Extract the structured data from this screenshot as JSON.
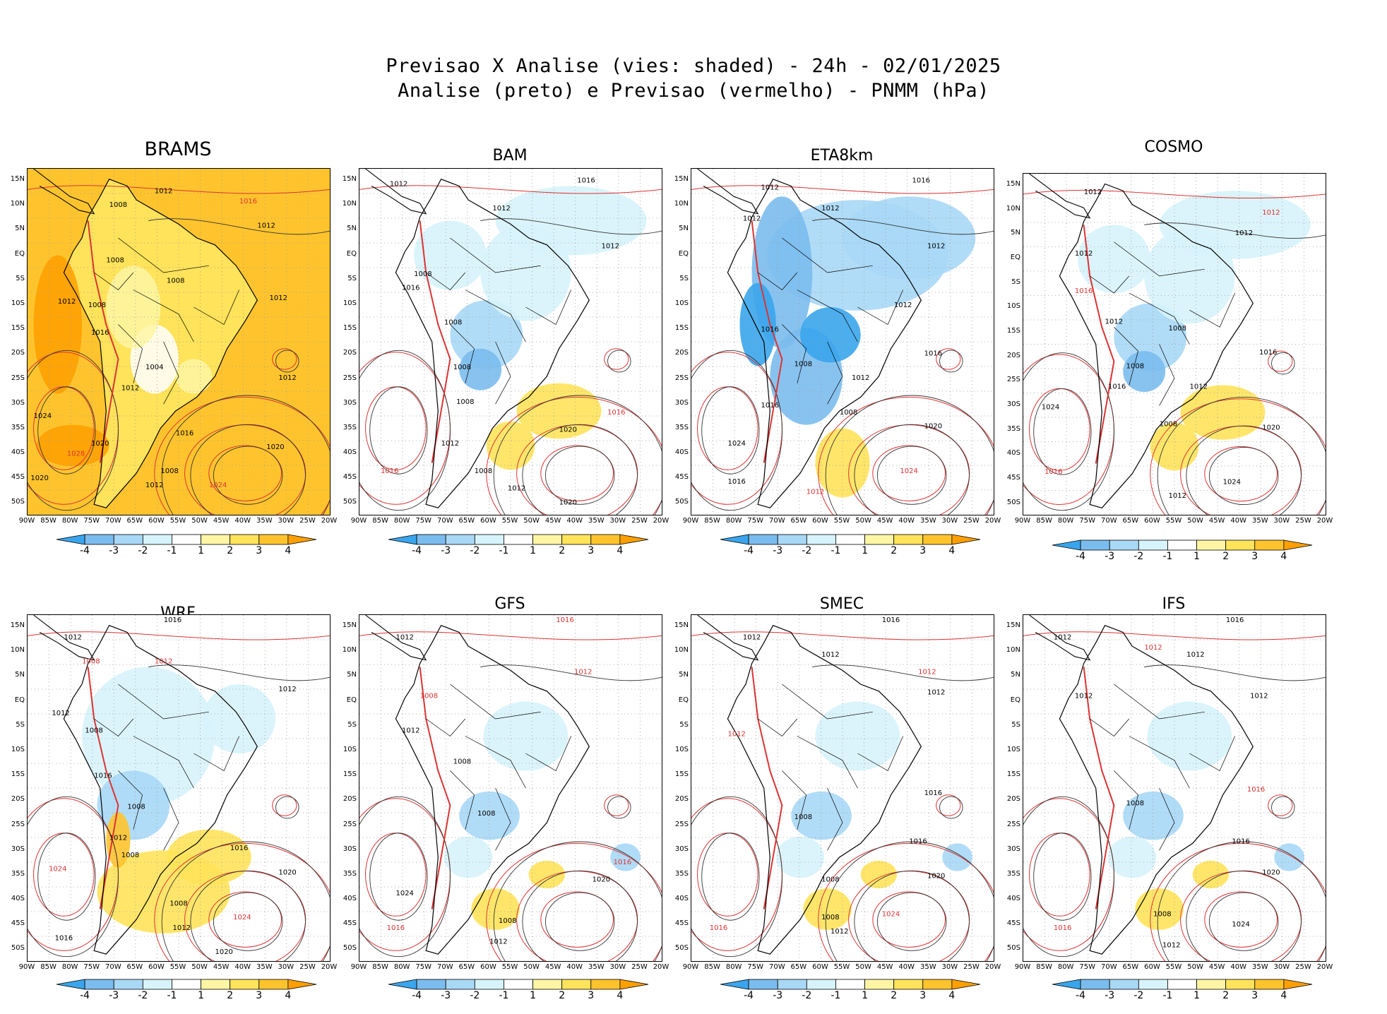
{
  "header": {
    "line1": "Previsao X Analise (vies: shaded) - 24h - 02/01/2025",
    "line2": "Analise (preto) e Previsao (vermelho) - PNMM (hPa)"
  },
  "axes": {
    "lat_labels": [
      "15N",
      "10N",
      "5N",
      "EQ",
      "5S",
      "10S",
      "15S",
      "20S",
      "25S",
      "30S",
      "35S",
      "40S",
      "45S",
      "50S"
    ],
    "lon_labels": [
      "90W",
      "85W",
      "80W",
      "75W",
      "70W",
      "65W",
      "60W",
      "55W",
      "50W",
      "45W",
      "40W",
      "35W",
      "30W",
      "25W",
      "20W"
    ]
  },
  "colorbar": {
    "ticks": [
      "-4",
      "-3",
      "-2",
      "-1",
      "1",
      "2",
      "3",
      "4"
    ],
    "colors": [
      "#3aa5ec",
      "#7bbcee",
      "#a9d8f6",
      "#d7f3fb",
      "#ffffff",
      "#fff6a5",
      "#ffe35a",
      "#ffc42d",
      "#ff9f00"
    ]
  },
  "panels": [
    {
      "name": "BRAMS",
      "mode": "orange",
      "labels": [
        [
          "1012",
          0.45,
          0.07,
          "k"
        ],
        [
          "1008",
          0.3,
          0.11,
          "k"
        ],
        [
          "1016",
          0.73,
          0.1,
          "r"
        ],
        [
          "1012",
          0.79,
          0.17,
          "k"
        ],
        [
          "1008",
          0.29,
          0.27,
          "k"
        ],
        [
          "1008",
          0.49,
          0.33,
          "k"
        ],
        [
          "1012",
          0.13,
          0.39,
          "k"
        ],
        [
          "1012",
          0.83,
          0.38,
          "k"
        ],
        [
          "1008",
          0.23,
          0.4,
          "k"
        ],
        [
          "1016",
          0.24,
          0.48,
          "k"
        ],
        [
          "1004",
          0.42,
          0.58,
          "k"
        ],
        [
          "1012",
          0.34,
          0.64,
          "k"
        ],
        [
          "1012",
          0.86,
          0.61,
          "k"
        ],
        [
          "1024",
          0.05,
          0.72,
          "k"
        ],
        [
          "1016",
          0.52,
          0.77,
          "k"
        ],
        [
          "1020",
          0.24,
          0.8,
          "k"
        ],
        [
          "1020",
          0.82,
          0.81,
          "k"
        ],
        [
          "1028",
          0.16,
          0.83,
          "r"
        ],
        [
          "1008",
          0.47,
          0.88,
          "k"
        ],
        [
          "1012",
          0.42,
          0.92,
          "k"
        ],
        [
          "1024",
          0.63,
          0.92,
          "r"
        ],
        [
          "1020",
          0.04,
          0.9,
          "k"
        ]
      ]
    },
    {
      "name": "BAM",
      "mode": "blue",
      "labels": [
        [
          "1012",
          0.13,
          0.05,
          "k"
        ],
        [
          "1016",
          0.75,
          0.04,
          "k"
        ],
        [
          "1012",
          0.47,
          0.12,
          "k"
        ],
        [
          "1012",
          0.83,
          0.23,
          "k"
        ],
        [
          "1008",
          0.21,
          0.31,
          "k"
        ],
        [
          "1016",
          0.17,
          0.35,
          "k"
        ],
        [
          "1008",
          0.31,
          0.45,
          "k"
        ],
        [
          "1008",
          0.34,
          0.58,
          "k"
        ],
        [
          "1008",
          0.35,
          0.68,
          "k"
        ],
        [
          "1020",
          0.69,
          0.76,
          "k"
        ],
        [
          "1016",
          0.85,
          0.71,
          "r"
        ],
        [
          "1012",
          0.3,
          0.8,
          "k"
        ],
        [
          "1008",
          0.41,
          0.88,
          "k"
        ],
        [
          "1012",
          0.52,
          0.93,
          "k"
        ],
        [
          "1020",
          0.69,
          0.97,
          "k"
        ],
        [
          "1016",
          0.1,
          0.88,
          "r"
        ]
      ]
    },
    {
      "name": "ETA8km",
      "mode": "blue-strong",
      "labels": [
        [
          "1012",
          0.26,
          0.06,
          "k"
        ],
        [
          "1016",
          0.76,
          0.04,
          "k"
        ],
        [
          "1012",
          0.46,
          0.12,
          "k"
        ],
        [
          "1012",
          0.2,
          0.15,
          "k"
        ],
        [
          "1012",
          0.81,
          0.23,
          "k"
        ],
        [
          "1012",
          0.7,
          0.4,
          "k"
        ],
        [
          "1016",
          0.26,
          0.47,
          "k"
        ],
        [
          "1008",
          0.37,
          0.57,
          "k"
        ],
        [
          "1012",
          0.56,
          0.61,
          "k"
        ],
        [
          "1016",
          0.8,
          0.54,
          "k"
        ],
        [
          "1016",
          0.26,
          0.69,
          "k"
        ],
        [
          "1008",
          0.52,
          0.71,
          "k"
        ],
        [
          "1020",
          0.8,
          0.75,
          "k"
        ],
        [
          "1024",
          0.15,
          0.8,
          "k"
        ],
        [
          "1016",
          0.15,
          0.91,
          "k"
        ],
        [
          "1012",
          0.41,
          0.94,
          "r"
        ],
        [
          "1024",
          0.72,
          0.88,
          "r"
        ]
      ]
    },
    {
      "name": "COSMO",
      "mode": "blue",
      "labels": [
        [
          "1012",
          0.23,
          0.06,
          "k"
        ],
        [
          "1012",
          0.82,
          0.12,
          "r"
        ],
        [
          "1012",
          0.73,
          0.18,
          "k"
        ],
        [
          "1012",
          0.2,
          0.24,
          "k"
        ],
        [
          "1016",
          0.2,
          0.35,
          "r"
        ],
        [
          "1008",
          0.51,
          0.46,
          "k"
        ],
        [
          "1012",
          0.3,
          0.44,
          "k"
        ],
        [
          "1016",
          0.81,
          0.53,
          "k"
        ],
        [
          "1008",
          0.37,
          0.57,
          "k"
        ],
        [
          "1016",
          0.31,
          0.63,
          "k"
        ],
        [
          "1012",
          0.58,
          0.63,
          "k"
        ],
        [
          "1024",
          0.09,
          0.69,
          "k"
        ],
        [
          "1020",
          0.82,
          0.75,
          "k"
        ],
        [
          "1008",
          0.48,
          0.74,
          "k"
        ],
        [
          "1024",
          0.69,
          0.91,
          "k"
        ],
        [
          "1016",
          0.1,
          0.88,
          "r"
        ],
        [
          "1012",
          0.51,
          0.95,
          "k"
        ]
      ]
    },
    {
      "name": "WRF",
      "mode": "mixed",
      "labels": [
        [
          "1016",
          0.48,
          0.02,
          "k"
        ],
        [
          "1012",
          0.15,
          0.07,
          "k"
        ],
        [
          "1008",
          0.21,
          0.14,
          "r"
        ],
        [
          "1012",
          0.45,
          0.14,
          "r"
        ],
        [
          "1012",
          0.86,
          0.22,
          "k"
        ],
        [
          "1012",
          0.11,
          0.29,
          "k"
        ],
        [
          "1008",
          0.22,
          0.34,
          "k"
        ],
        [
          "1016",
          0.25,
          0.47,
          "k"
        ],
        [
          "1008",
          0.36,
          0.56,
          "k"
        ],
        [
          "1012",
          0.3,
          0.65,
          "k"
        ],
        [
          "1008",
          0.34,
          0.7,
          "k"
        ],
        [
          "1016",
          0.7,
          0.68,
          "k"
        ],
        [
          "1024",
          0.1,
          0.74,
          "r"
        ],
        [
          "1020",
          0.86,
          0.75,
          "k"
        ],
        [
          "1008",
          0.5,
          0.84,
          "k"
        ],
        [
          "1024",
          0.71,
          0.88,
          "r"
        ],
        [
          "1012",
          0.51,
          0.91,
          "k"
        ],
        [
          "1016",
          0.12,
          0.94,
          "k"
        ],
        [
          "1020",
          0.65,
          0.98,
          "k"
        ]
      ]
    },
    {
      "name": "GFS",
      "mode": "light",
      "labels": [
        [
          "1016",
          0.68,
          0.02,
          "r"
        ],
        [
          "1012",
          0.15,
          0.07,
          "k"
        ],
        [
          "1012",
          0.74,
          0.17,
          "r"
        ],
        [
          "1008",
          0.23,
          0.24,
          "r"
        ],
        [
          "1012",
          0.17,
          0.34,
          "k"
        ],
        [
          "1008",
          0.34,
          0.43,
          "k"
        ],
        [
          "1008",
          0.42,
          0.58,
          "k"
        ],
        [
          "1016",
          0.87,
          0.72,
          "r"
        ],
        [
          "1020",
          0.8,
          0.77,
          "k"
        ],
        [
          "1024",
          0.15,
          0.81,
          "k"
        ],
        [
          "1008",
          0.49,
          0.89,
          "k"
        ],
        [
          "1012",
          0.46,
          0.95,
          "k"
        ],
        [
          "1016",
          0.12,
          0.91,
          "r"
        ]
      ]
    },
    {
      "name": "SMEC",
      "mode": "light",
      "labels": [
        [
          "1016",
          0.66,
          0.02,
          "k"
        ],
        [
          "1012",
          0.2,
          0.07,
          "k"
        ],
        [
          "1012",
          0.46,
          0.12,
          "k"
        ],
        [
          "1012",
          0.78,
          0.17,
          "r"
        ],
        [
          "1012",
          0.81,
          0.23,
          "k"
        ],
        [
          "1012",
          0.15,
          0.35,
          "r"
        ],
        [
          "1016",
          0.8,
          0.52,
          "k"
        ],
        [
          "1008",
          0.37,
          0.59,
          "k"
        ],
        [
          "1016",
          0.75,
          0.66,
          "k"
        ],
        [
          "1020",
          0.81,
          0.76,
          "k"
        ],
        [
          "1008",
          0.46,
          0.77,
          "k"
        ],
        [
          "1008",
          0.46,
          0.88,
          "k"
        ],
        [
          "1012",
          0.49,
          0.92,
          "k"
        ],
        [
          "1024",
          0.66,
          0.87,
          "r"
        ],
        [
          "1016",
          0.09,
          0.91,
          "r"
        ]
      ]
    },
    {
      "name": "IFS",
      "mode": "light",
      "labels": [
        [
          "1016",
          0.7,
          0.02,
          "k"
        ],
        [
          "1012",
          0.13,
          0.07,
          "k"
        ],
        [
          "1012",
          0.43,
          0.1,
          "r"
        ],
        [
          "1012",
          0.57,
          0.12,
          "k"
        ],
        [
          "1012",
          0.78,
          0.24,
          "k"
        ],
        [
          "1012",
          0.2,
          0.24,
          "k"
        ],
        [
          "1008",
          0.37,
          0.55,
          "k"
        ],
        [
          "1016",
          0.77,
          0.51,
          "r"
        ],
        [
          "1016",
          0.72,
          0.66,
          "k"
        ],
        [
          "1020",
          0.82,
          0.75,
          "k"
        ],
        [
          "1008",
          0.46,
          0.87,
          "k"
        ],
        [
          "1024",
          0.72,
          0.9,
          "k"
        ],
        [
          "1016",
          0.13,
          0.91,
          "r"
        ],
        [
          "1012",
          0.49,
          0.96,
          "k"
        ]
      ]
    }
  ]
}
